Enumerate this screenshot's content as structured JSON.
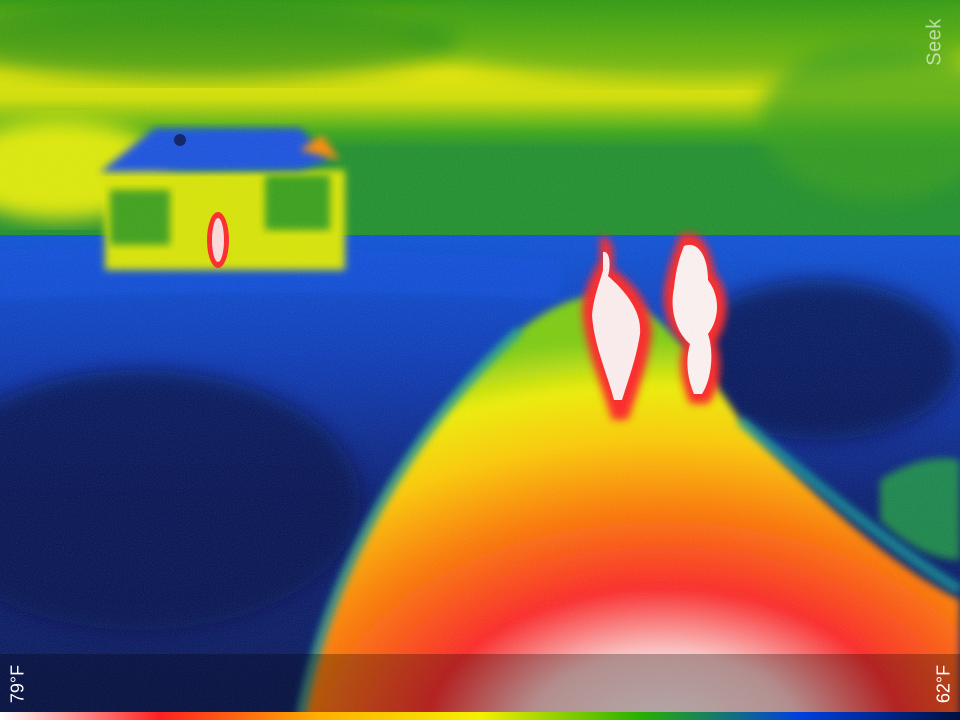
{
  "watermark": {
    "text": "Seek"
  },
  "temperature": {
    "max": "79°F",
    "min": "62°F"
  },
  "palette": {
    "colors": [
      "#ffffff",
      "#ff2020",
      "#ffb000",
      "#f5f000",
      "#28b000",
      "#0040e0",
      "#001040"
    ]
  }
}
